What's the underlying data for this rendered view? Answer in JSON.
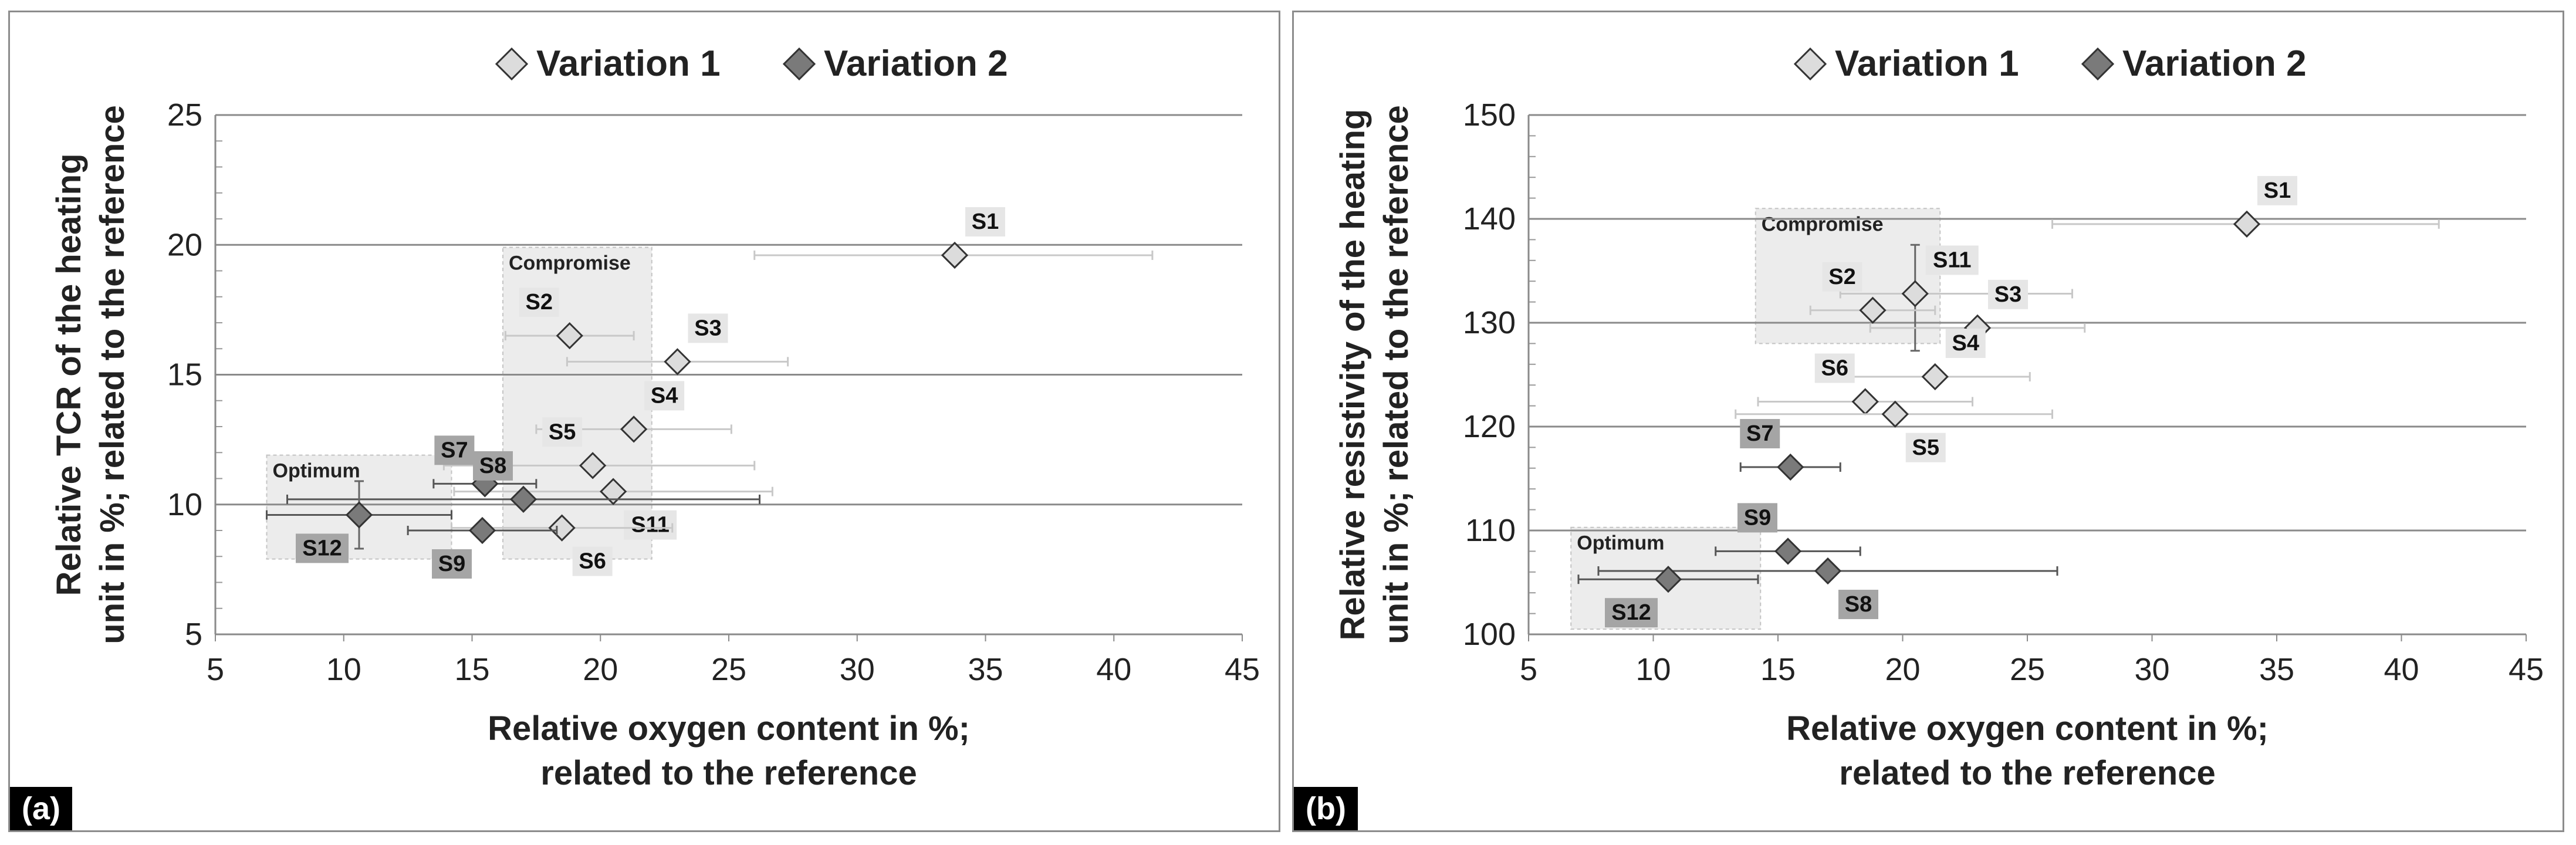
{
  "chart_data": [
    {
      "type": "scatter",
      "panel_label": "(a)",
      "xlabel": "Relative oxygen content in %;\nrelated to the reference",
      "ylabel": "Relative TCR of the heating\nunit in %; related to the reference",
      "xlim": [
        5,
        45
      ],
      "ylim": [
        5,
        25
      ],
      "xticks": [
        5,
        10,
        15,
        20,
        25,
        30,
        35,
        40,
        45
      ],
      "yticks": [
        5,
        10,
        15,
        20,
        25
      ],
      "grid": "horizontal",
      "legend": {
        "placement": "top-center",
        "items": [
          {
            "name": "Variation 1",
            "color": "#dcdcdc"
          },
          {
            "name": "Variation 2",
            "color": "#7a7a7a"
          }
        ]
      },
      "regions": [
        {
          "label": "Compromise",
          "x": [
            16.2,
            22.0
          ],
          "y": [
            7.9,
            19.9
          ]
        },
        {
          "label": "Optimum",
          "x": [
            7.0,
            14.2
          ],
          "y": [
            7.9,
            11.9
          ]
        }
      ],
      "series": [
        {
          "name": "Variation 1",
          "points": [
            {
              "label": "S1",
              "x": 33.8,
              "y": 19.6,
              "xerr": [
                26.0,
                41.5
              ],
              "label_pos": "upper-right"
            },
            {
              "label": "S2",
              "x": 18.8,
              "y": 16.5,
              "xerr": [
                16.3,
                21.3
              ],
              "label_pos": "upper-left"
            },
            {
              "label": "S3",
              "x": 23.0,
              "y": 15.5,
              "xerr": [
                18.7,
                27.3
              ],
              "label_pos": "upper-right"
            },
            {
              "label": "S4",
              "x": 21.3,
              "y": 12.9,
              "xerr": [
                17.5,
                25.1
              ],
              "label_pos": "upper-right"
            },
            {
              "label": "S5",
              "x": 19.7,
              "y": 11.5,
              "xerr": [
                13.9,
                26.0
              ],
              "label_pos": "upper-left"
            },
            {
              "label": "S11",
              "x": 20.5,
              "y": 10.5,
              "xerr": [
                14.3,
                26.7
              ],
              "label_pos": "lower-right"
            },
            {
              "label": "S6",
              "x": 18.5,
              "y": 9.1,
              "xerr": [
                14.2,
                22.8
              ],
              "label_pos": "lower-right"
            }
          ]
        },
        {
          "name": "Variation 2",
          "points": [
            {
              "label": "S7",
              "x": 15.5,
              "y": 10.8,
              "xerr": [
                13.5,
                17.5
              ],
              "label_pos": "upper-left"
            },
            {
              "label": "S8",
              "x": 17.0,
              "y": 10.2,
              "xerr": [
                7.8,
                26.2
              ],
              "label_pos": "upper-left"
            },
            {
              "label": "S9",
              "x": 15.4,
              "y": 9.0,
              "xerr": [
                12.5,
                18.3
              ],
              "label_pos": "lower-left"
            },
            {
              "label": "S12",
              "x": 10.6,
              "y": 9.6,
              "xerr": [
                7.0,
                14.2
              ],
              "yerr": [
                8.3,
                10.9
              ],
              "label_pos": "lower-left"
            }
          ]
        }
      ]
    },
    {
      "type": "scatter",
      "panel_label": "(b)",
      "xlabel": "Relative oxygen content in %;\nrelated to the reference",
      "ylabel": "Relative resistivity of the heating\nunit in %; related to the reference",
      "xlim": [
        5,
        45
      ],
      "ylim": [
        100,
        150
      ],
      "xticks": [
        5,
        10,
        15,
        20,
        25,
        30,
        35,
        40,
        45
      ],
      "yticks": [
        100,
        110,
        120,
        130,
        140,
        150
      ],
      "grid": "horizontal",
      "legend": {
        "placement": "top-center",
        "items": [
          {
            "name": "Variation 1",
            "color": "#dcdcdc"
          },
          {
            "name": "Variation 2",
            "color": "#7a7a7a"
          }
        ]
      },
      "regions": [
        {
          "label": "Compromise",
          "x": [
            14.1,
            21.5
          ],
          "y": [
            128.0,
            141.0
          ]
        },
        {
          "label": "Optimum",
          "x": [
            6.7,
            14.3
          ],
          "y": [
            100.5,
            110.3
          ]
        }
      ],
      "series": [
        {
          "name": "Variation 1",
          "points": [
            {
              "label": "S1",
              "x": 33.8,
              "y": 139.5,
              "xerr": [
                26.0,
                41.5
              ],
              "label_pos": "upper-right"
            },
            {
              "label": "S11",
              "x": 20.5,
              "y": 132.8,
              "xerr": [
                17.5,
                26.8
              ],
              "yerr": [
                127.3,
                137.5
              ],
              "label_pos": "upper-right"
            },
            {
              "label": "S2",
              "x": 18.8,
              "y": 131.2,
              "xerr": [
                16.3,
                21.3
              ],
              "label_pos": "upper-left"
            },
            {
              "label": "S3",
              "x": 23.0,
              "y": 129.5,
              "xerr": [
                18.7,
                27.3
              ],
              "label_pos": "upper-right"
            },
            {
              "label": "S4",
              "x": 21.3,
              "y": 124.8,
              "xerr": [
                17.5,
                25.1
              ],
              "label_pos": "upper-right"
            },
            {
              "label": "S6",
              "x": 18.5,
              "y": 122.4,
              "xerr": [
                14.2,
                22.8
              ],
              "label_pos": "upper-left"
            },
            {
              "label": "S5",
              "x": 19.7,
              "y": 121.2,
              "xerr": [
                13.3,
                26.0
              ],
              "label_pos": "lower-right"
            }
          ]
        },
        {
          "name": "Variation 2",
          "points": [
            {
              "label": "S7",
              "x": 15.5,
              "y": 116.1,
              "xerr": [
                13.5,
                17.5
              ],
              "label_pos": "upper-left"
            },
            {
              "label": "S9",
              "x": 15.4,
              "y": 108.0,
              "xerr": [
                12.5,
                18.3
              ],
              "label_pos": "upper-left"
            },
            {
              "label": "S8",
              "x": 17.0,
              "y": 106.1,
              "xerr": [
                7.8,
                26.2
              ],
              "label_pos": "lower-right"
            },
            {
              "label": "S12",
              "x": 10.6,
              "y": 105.3,
              "xerr": [
                7.0,
                14.2
              ],
              "label_pos": "lower-left"
            }
          ]
        }
      ]
    }
  ]
}
